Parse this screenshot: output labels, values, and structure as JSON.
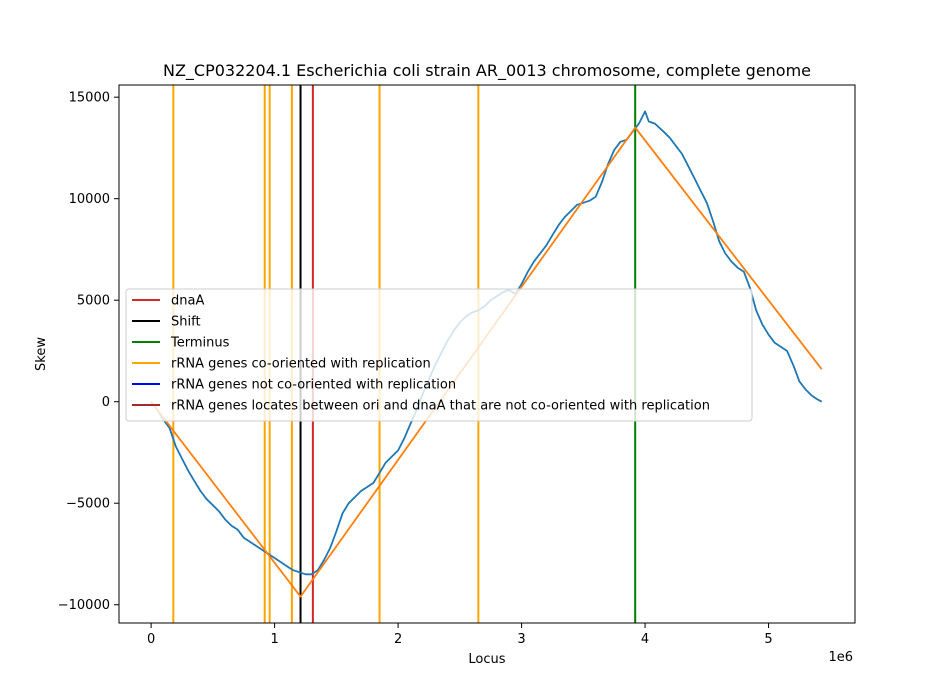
{
  "chart_data": {
    "type": "line",
    "title": "NZ_CP032204.1 Escherichia coli strain AR_0013 chromosome, complete genome",
    "xlabel": "Locus",
    "ylabel": "Skew",
    "x_offset_label": "1e6",
    "xlim": [
      -260000,
      5700000
    ],
    "ylim": [
      -10900,
      15600
    ],
    "x_ticks": [
      0,
      1000000,
      2000000,
      3000000,
      4000000,
      5000000
    ],
    "x_tick_labels": [
      "0",
      "1",
      "2",
      "3",
      "4",
      "5"
    ],
    "y_ticks": [
      -10000,
      -5000,
      0,
      5000,
      10000,
      15000
    ],
    "y_tick_labels": [
      "−10000",
      "−5000",
      "0",
      "5000",
      "10000",
      "15000"
    ],
    "grid": false,
    "legend_position": "center-left",
    "vertical_lines": [
      {
        "x": 1310000,
        "series": "dnaA",
        "color": "#d62728"
      },
      {
        "x": 1210000,
        "series": "Shift",
        "color": "#000000"
      },
      {
        "x": 3920000,
        "series": "Terminus",
        "color": "#008000"
      },
      {
        "x": 180000,
        "series": "rRNA genes co-oriented with replication",
        "color": "#ffa500"
      },
      {
        "x": 920000,
        "series": "rRNA genes co-oriented with replication",
        "color": "#ffa500"
      },
      {
        "x": 960000,
        "series": "rRNA genes co-oriented with replication",
        "color": "#ffa500"
      },
      {
        "x": 1140000,
        "series": "rRNA genes co-oriented with replication",
        "color": "#ffa500"
      },
      {
        "x": 1850000,
        "series": "rRNA genes co-oriented with replication",
        "color": "#ffa500"
      },
      {
        "x": 2650000,
        "series": "rRNA genes co-oriented with replication",
        "color": "#ffa500"
      }
    ],
    "series": [
      {
        "color": "#1f77b4",
        "points": [
          [
            0,
            0
          ],
          [
            50000,
            -400
          ],
          [
            100000,
            -900
          ],
          [
            150000,
            -1300
          ],
          [
            200000,
            -2200
          ],
          [
            250000,
            -2800
          ],
          [
            300000,
            -3400
          ],
          [
            350000,
            -3900
          ],
          [
            400000,
            -4400
          ],
          [
            450000,
            -4800
          ],
          [
            500000,
            -5100
          ],
          [
            550000,
            -5400
          ],
          [
            600000,
            -5800
          ],
          [
            650000,
            -6100
          ],
          [
            700000,
            -6300
          ],
          [
            750000,
            -6700
          ],
          [
            800000,
            -6900
          ],
          [
            850000,
            -7100
          ],
          [
            900000,
            -7300
          ],
          [
            950000,
            -7500
          ],
          [
            1000000,
            -7700
          ],
          [
            1050000,
            -7900
          ],
          [
            1100000,
            -8100
          ],
          [
            1150000,
            -8300
          ],
          [
            1200000,
            -8400
          ],
          [
            1250000,
            -8500
          ],
          [
            1300000,
            -8500
          ],
          [
            1350000,
            -8300
          ],
          [
            1400000,
            -7800
          ],
          [
            1450000,
            -7200
          ],
          [
            1500000,
            -6400
          ],
          [
            1550000,
            -5500
          ],
          [
            1600000,
            -5000
          ],
          [
            1650000,
            -4700
          ],
          [
            1700000,
            -4400
          ],
          [
            1750000,
            -4200
          ],
          [
            1800000,
            -4000
          ],
          [
            1850000,
            -3500
          ],
          [
            1900000,
            -3000
          ],
          [
            1950000,
            -2700
          ],
          [
            2000000,
            -2400
          ],
          [
            2050000,
            -1800
          ],
          [
            2100000,
            -1100
          ],
          [
            2150000,
            -400
          ],
          [
            2200000,
            400
          ],
          [
            2250000,
            1100
          ],
          [
            2300000,
            1800
          ],
          [
            2350000,
            2400
          ],
          [
            2400000,
            3000
          ],
          [
            2450000,
            3500
          ],
          [
            2500000,
            3900
          ],
          [
            2550000,
            4200
          ],
          [
            2600000,
            4400
          ],
          [
            2650000,
            4500
          ],
          [
            2700000,
            4700
          ],
          [
            2750000,
            5000
          ],
          [
            2800000,
            5200
          ],
          [
            2850000,
            5400
          ],
          [
            2900000,
            5500
          ],
          [
            2950000,
            5300
          ],
          [
            3000000,
            5800
          ],
          [
            3050000,
            6400
          ],
          [
            3100000,
            6900
          ],
          [
            3150000,
            7300
          ],
          [
            3200000,
            7700
          ],
          [
            3250000,
            8200
          ],
          [
            3300000,
            8700
          ],
          [
            3350000,
            9100
          ],
          [
            3400000,
            9400
          ],
          [
            3450000,
            9700
          ],
          [
            3500000,
            9800
          ],
          [
            3550000,
            9900
          ],
          [
            3600000,
            10100
          ],
          [
            3650000,
            10800
          ],
          [
            3700000,
            11700
          ],
          [
            3750000,
            12400
          ],
          [
            3800000,
            12800
          ],
          [
            3850000,
            12900
          ],
          [
            3900000,
            13300
          ],
          [
            3950000,
            13700
          ],
          [
            4000000,
            14300
          ],
          [
            4030000,
            13800
          ],
          [
            4080000,
            13700
          ],
          [
            4150000,
            13300
          ],
          [
            4200000,
            13000
          ],
          [
            4250000,
            12600
          ],
          [
            4300000,
            12200
          ],
          [
            4350000,
            11600
          ],
          [
            4400000,
            11000
          ],
          [
            4450000,
            10400
          ],
          [
            4500000,
            9800
          ],
          [
            4550000,
            8900
          ],
          [
            4600000,
            7900
          ],
          [
            4650000,
            7300
          ],
          [
            4700000,
            6900
          ],
          [
            4750000,
            6600
          ],
          [
            4800000,
            6400
          ],
          [
            4850000,
            5600
          ],
          [
            4900000,
            4500
          ],
          [
            4950000,
            3800
          ],
          [
            5000000,
            3300
          ],
          [
            5050000,
            2900
          ],
          [
            5100000,
            2700
          ],
          [
            5150000,
            2500
          ],
          [
            5200000,
            1800
          ],
          [
            5250000,
            1000
          ],
          [
            5300000,
            600
          ],
          [
            5350000,
            300
          ],
          [
            5400000,
            100
          ],
          [
            5430000,
            0
          ]
        ]
      },
      {
        "color": "#ff7f0e",
        "points": [
          [
            0,
            0
          ],
          [
            1210000,
            -9600
          ],
          [
            3920000,
            13500
          ],
          [
            5430000,
            1600
          ]
        ]
      }
    ],
    "legend": [
      {
        "label": "dnaA",
        "color": "#d62728"
      },
      {
        "label": "Shift",
        "color": "#000000"
      },
      {
        "label": "Terminus",
        "color": "#008000"
      },
      {
        "label": "rRNA genes co-oriented with replication",
        "color": "#ffa500"
      },
      {
        "label": "rRNA genes not co-oriented with replication",
        "color": "#0000ff"
      },
      {
        "label": "rRNA genes locates between ori and dnaA that are not co-oriented with replication",
        "color": "#a52a2a"
      }
    ]
  }
}
